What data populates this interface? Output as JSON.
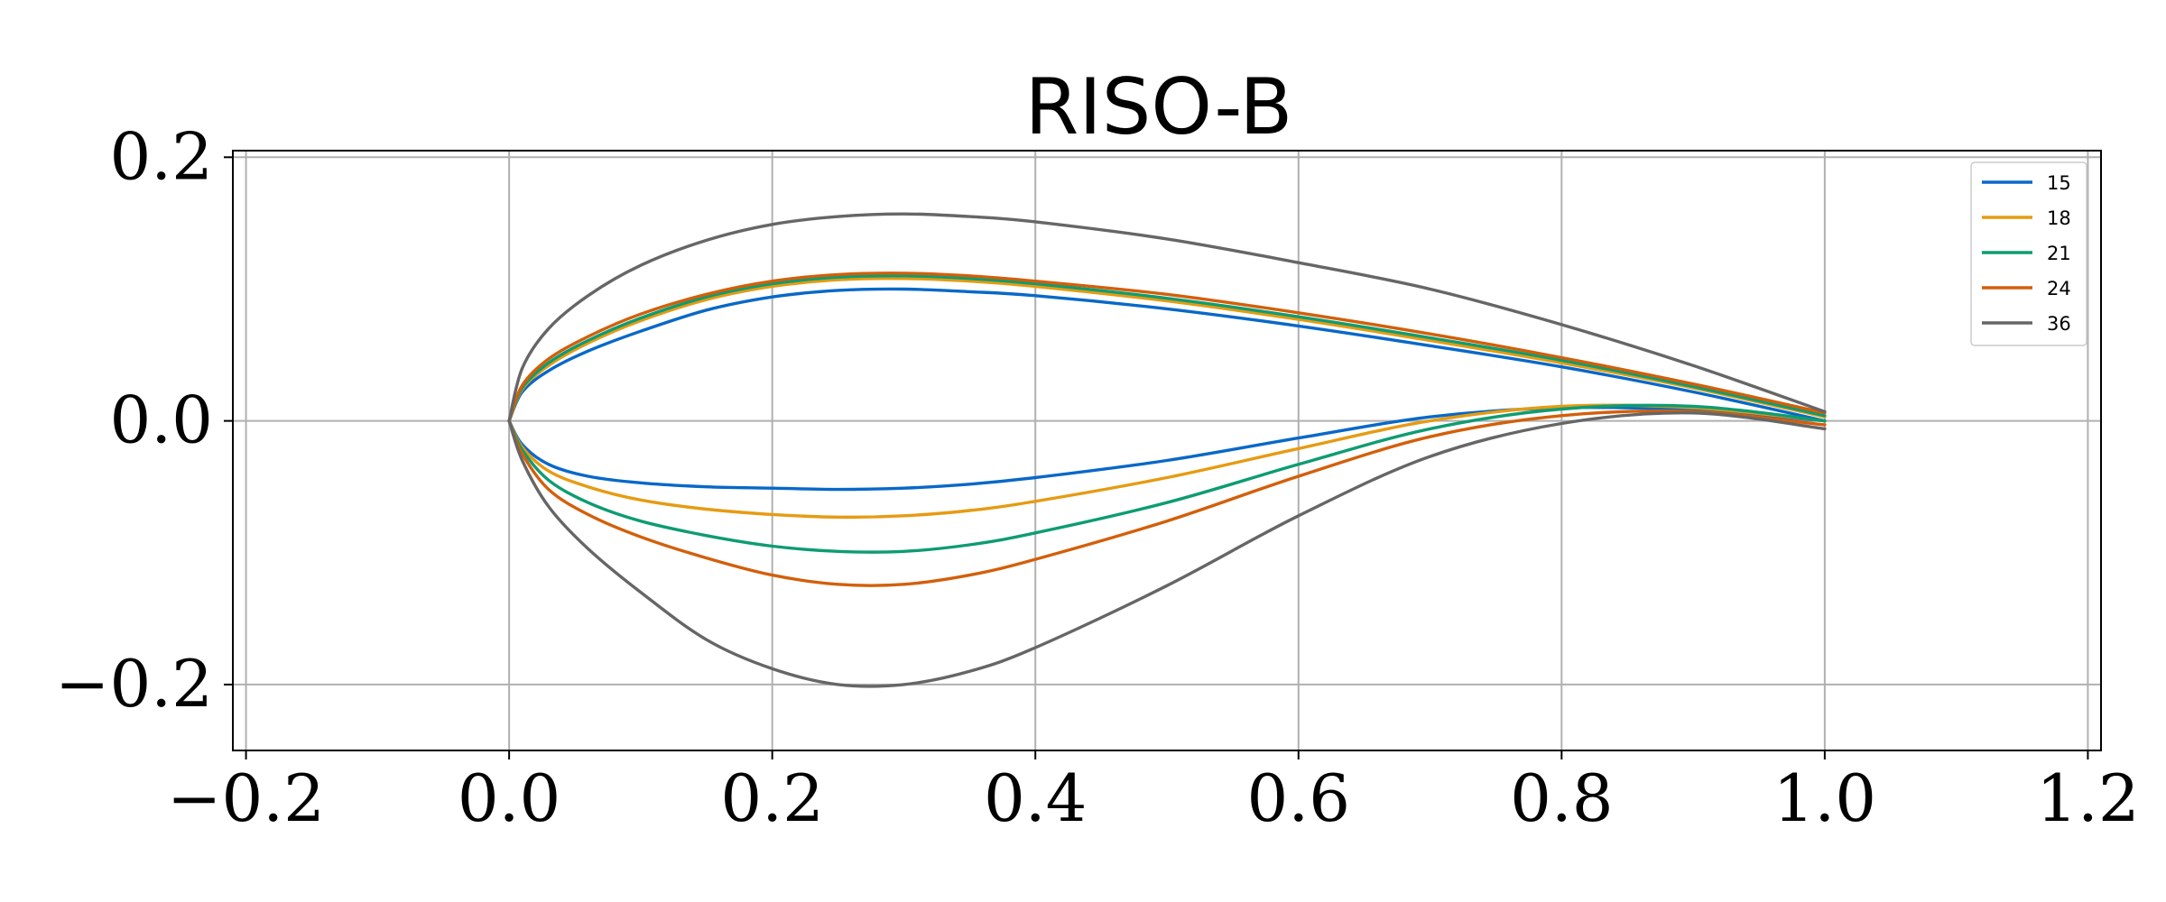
{
  "chart_data": {
    "type": "line",
    "title": "RISO-B",
    "xlabel": "",
    "ylabel": "",
    "xlim": [
      -0.21,
      1.21
    ],
    "ylim": [
      -0.25,
      0.205
    ],
    "x_ticks": [
      {
        "value": -0.2,
        "label": "−0.2"
      },
      {
        "value": 0.0,
        "label": "0.0"
      },
      {
        "value": 0.2,
        "label": "0.2"
      },
      {
        "value": 0.4,
        "label": "0.4"
      },
      {
        "value": 0.6,
        "label": "0.6"
      },
      {
        "value": 0.8,
        "label": "0.8"
      },
      {
        "value": 1.0,
        "label": "1.0"
      },
      {
        "value": 1.2,
        "label": "1.2"
      }
    ],
    "y_ticks": [
      {
        "value": 0.2,
        "label": "0.2"
      },
      {
        "value": 0.0,
        "label": "0.0"
      },
      {
        "value": -0.2,
        "label": "−0.2"
      }
    ],
    "grid": true,
    "legend_position": "top-right",
    "series": [
      {
        "name": "15",
        "color": "#0868c8",
        "upper": [
          [
            0,
            0
          ],
          [
            0.01,
            0.022
          ],
          [
            0.03,
            0.038
          ],
          [
            0.06,
            0.053
          ],
          [
            0.1,
            0.068
          ],
          [
            0.15,
            0.084
          ],
          [
            0.2,
            0.094
          ],
          [
            0.25,
            0.099
          ],
          [
            0.3,
            0.1
          ],
          [
            0.35,
            0.098
          ],
          [
            0.4,
            0.095
          ],
          [
            0.5,
            0.085
          ],
          [
            0.6,
            0.072
          ],
          [
            0.7,
            0.057
          ],
          [
            0.8,
            0.041
          ],
          [
            0.9,
            0.022
          ],
          [
            1.0,
            0.0
          ]
        ],
        "lower": [
          [
            0,
            0
          ],
          [
            0.01,
            -0.018
          ],
          [
            0.03,
            -0.033
          ],
          [
            0.06,
            -0.042
          ],
          [
            0.1,
            -0.047
          ],
          [
            0.15,
            -0.05
          ],
          [
            0.2,
            -0.051
          ],
          [
            0.25,
            -0.052
          ],
          [
            0.3,
            -0.051
          ],
          [
            0.35,
            -0.048
          ],
          [
            0.4,
            -0.043
          ],
          [
            0.5,
            -0.03
          ],
          [
            0.6,
            -0.013
          ],
          [
            0.7,
            0.003
          ],
          [
            0.8,
            0.01
          ],
          [
            0.9,
            0.008
          ],
          [
            1.0,
            0.0
          ]
        ]
      },
      {
        "name": "18",
        "color": "#e69b12",
        "upper": [
          [
            0,
            0
          ],
          [
            0.01,
            0.024
          ],
          [
            0.03,
            0.042
          ],
          [
            0.06,
            0.059
          ],
          [
            0.1,
            0.076
          ],
          [
            0.15,
            0.092
          ],
          [
            0.2,
            0.102
          ],
          [
            0.25,
            0.107
          ],
          [
            0.3,
            0.108
          ],
          [
            0.35,
            0.106
          ],
          [
            0.4,
            0.102
          ],
          [
            0.5,
            0.091
          ],
          [
            0.6,
            0.077
          ],
          [
            0.7,
            0.061
          ],
          [
            0.8,
            0.044
          ],
          [
            0.9,
            0.025
          ],
          [
            1.0,
            0.003
          ]
        ],
        "lower": [
          [
            0,
            0
          ],
          [
            0.01,
            -0.02
          ],
          [
            0.03,
            -0.038
          ],
          [
            0.06,
            -0.05
          ],
          [
            0.1,
            -0.06
          ],
          [
            0.15,
            -0.067
          ],
          [
            0.2,
            -0.071
          ],
          [
            0.25,
            -0.073
          ],
          [
            0.3,
            -0.072
          ],
          [
            0.35,
            -0.068
          ],
          [
            0.4,
            -0.061
          ],
          [
            0.5,
            -0.043
          ],
          [
            0.6,
            -0.021
          ],
          [
            0.7,
            0.0
          ],
          [
            0.8,
            0.011
          ],
          [
            0.9,
            0.01
          ],
          [
            1.0,
            0.0
          ]
        ]
      },
      {
        "name": "21",
        "color": "#0e9c72",
        "upper": [
          [
            0,
            0
          ],
          [
            0.01,
            0.025
          ],
          [
            0.03,
            0.044
          ],
          [
            0.06,
            0.061
          ],
          [
            0.1,
            0.078
          ],
          [
            0.15,
            0.094
          ],
          [
            0.2,
            0.104
          ],
          [
            0.25,
            0.109
          ],
          [
            0.3,
            0.11
          ],
          [
            0.35,
            0.108
          ],
          [
            0.4,
            0.104
          ],
          [
            0.5,
            0.093
          ],
          [
            0.6,
            0.079
          ],
          [
            0.7,
            0.063
          ],
          [
            0.8,
            0.046
          ],
          [
            0.9,
            0.026
          ],
          [
            1.0,
            0.004
          ]
        ],
        "lower": [
          [
            0,
            0
          ],
          [
            0.01,
            -0.022
          ],
          [
            0.03,
            -0.045
          ],
          [
            0.06,
            -0.062
          ],
          [
            0.1,
            -0.076
          ],
          [
            0.15,
            -0.087
          ],
          [
            0.2,
            -0.095
          ],
          [
            0.25,
            -0.099
          ],
          [
            0.3,
            -0.099
          ],
          [
            0.35,
            -0.094
          ],
          [
            0.4,
            -0.085
          ],
          [
            0.5,
            -0.062
          ],
          [
            0.6,
            -0.033
          ],
          [
            0.7,
            -0.006
          ],
          [
            0.8,
            0.009
          ],
          [
            0.9,
            0.011
          ],
          [
            1.0,
            0.0
          ]
        ]
      },
      {
        "name": "24",
        "color": "#d35f0a",
        "upper": [
          [
            0,
            0
          ],
          [
            0.01,
            0.027
          ],
          [
            0.03,
            0.047
          ],
          [
            0.06,
            0.064
          ],
          [
            0.1,
            0.081
          ],
          [
            0.15,
            0.096
          ],
          [
            0.2,
            0.106
          ],
          [
            0.25,
            0.111
          ],
          [
            0.3,
            0.112
          ],
          [
            0.35,
            0.11
          ],
          [
            0.4,
            0.106
          ],
          [
            0.5,
            0.096
          ],
          [
            0.6,
            0.082
          ],
          [
            0.7,
            0.066
          ],
          [
            0.8,
            0.048
          ],
          [
            0.9,
            0.028
          ],
          [
            1.0,
            0.006
          ]
        ],
        "lower": [
          [
            0,
            0
          ],
          [
            0.01,
            -0.025
          ],
          [
            0.03,
            -0.052
          ],
          [
            0.06,
            -0.071
          ],
          [
            0.1,
            -0.088
          ],
          [
            0.15,
            -0.104
          ],
          [
            0.2,
            -0.117
          ],
          [
            0.25,
            -0.124
          ],
          [
            0.3,
            -0.124
          ],
          [
            0.35,
            -0.117
          ],
          [
            0.4,
            -0.105
          ],
          [
            0.5,
            -0.076
          ],
          [
            0.6,
            -0.042
          ],
          [
            0.7,
            -0.012
          ],
          [
            0.8,
            0.004
          ],
          [
            0.9,
            0.007
          ],
          [
            1.0,
            -0.003
          ]
        ]
      },
      {
        "name": "36",
        "color": "#666666",
        "upper": [
          [
            0,
            0
          ],
          [
            0.01,
            0.04
          ],
          [
            0.03,
            0.07
          ],
          [
            0.06,
            0.095
          ],
          [
            0.1,
            0.118
          ],
          [
            0.15,
            0.137
          ],
          [
            0.2,
            0.149
          ],
          [
            0.25,
            0.155
          ],
          [
            0.3,
            0.157
          ],
          [
            0.35,
            0.155
          ],
          [
            0.4,
            0.151
          ],
          [
            0.5,
            0.138
          ],
          [
            0.6,
            0.12
          ],
          [
            0.7,
            0.1
          ],
          [
            0.8,
            0.073
          ],
          [
            0.9,
            0.042
          ],
          [
            1.0,
            0.007
          ]
        ],
        "lower": [
          [
            0,
            0
          ],
          [
            0.01,
            -0.03
          ],
          [
            0.03,
            -0.065
          ],
          [
            0.06,
            -0.097
          ],
          [
            0.1,
            -0.13
          ],
          [
            0.15,
            -0.166
          ],
          [
            0.2,
            -0.188
          ],
          [
            0.25,
            -0.2
          ],
          [
            0.3,
            -0.2
          ],
          [
            0.35,
            -0.19
          ],
          [
            0.4,
            -0.172
          ],
          [
            0.5,
            -0.125
          ],
          [
            0.6,
            -0.072
          ],
          [
            0.7,
            -0.027
          ],
          [
            0.8,
            -0.002
          ],
          [
            0.9,
            0.006
          ],
          [
            1.0,
            -0.006
          ]
        ]
      }
    ]
  }
}
